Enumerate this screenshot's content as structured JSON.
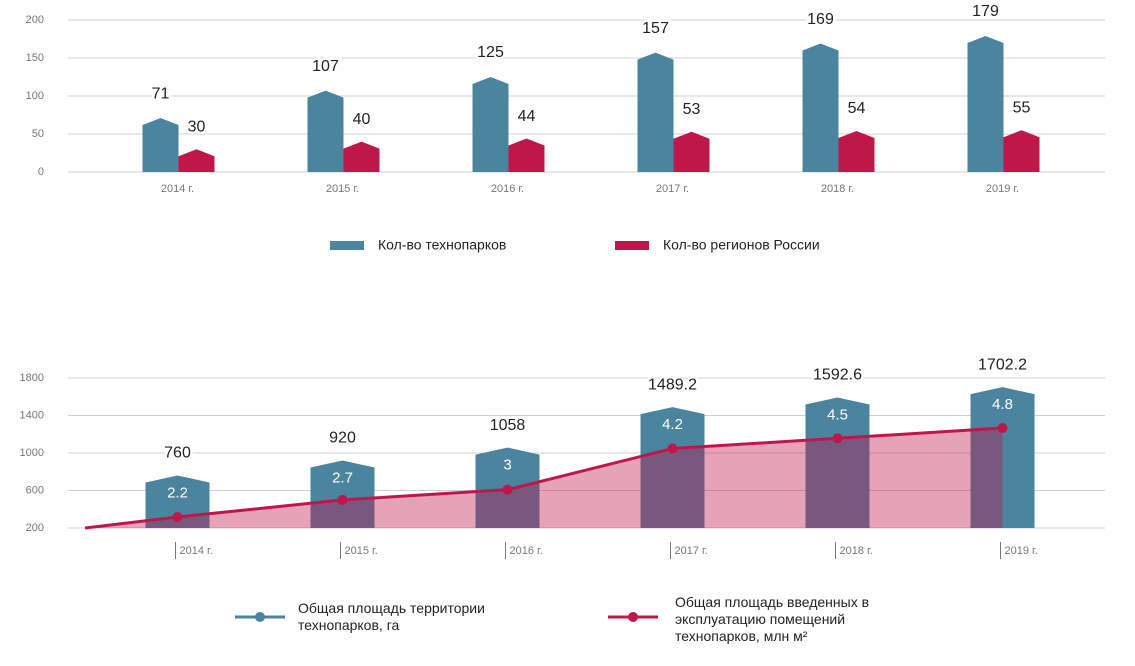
{
  "chart_data": [
    {
      "type": "bar",
      "categories": [
        "2014 г.",
        "2015 г.",
        "2016 г.",
        "2017 г.",
        "2018 г.",
        "2019 г."
      ],
      "series": [
        {
          "name": "Кол-во технопарков",
          "color": "#4a849e",
          "values": [
            71,
            107,
            125,
            157,
            169,
            179
          ]
        },
        {
          "name": "Кол-во регионов России",
          "color": "#c0174a",
          "values": [
            30,
            40,
            44,
            53,
            54,
            55
          ]
        }
      ],
      "ylim": [
        0,
        200
      ],
      "yticks": [
        0,
        50,
        100,
        150,
        200
      ],
      "grid": true,
      "legend": "bottom"
    },
    {
      "type": "bar_line",
      "categories": [
        "2014 г.",
        "2015 г.",
        "2016 г.",
        "2017 г.",
        "2018 г.",
        "2019 г."
      ],
      "series": [
        {
          "name": "Общая площадь территории технопарков, га",
          "color": "#4a849e",
          "values": [
            760,
            920,
            1058,
            1489.2,
            1592.6,
            1702.2
          ]
        },
        {
          "name": "Общая площадь введенных в эксплуатацию помещений технопарков, млн м²",
          "color": "#c0174a",
          "values": [
            2.2,
            2.7,
            3,
            4.2,
            4.5,
            4.8
          ],
          "axis": "y2"
        }
      ],
      "ylim": [
        200,
        1800
      ],
      "yticks": [
        200,
        600,
        1000,
        1400,
        1800
      ],
      "y2lim": [
        1.88,
        6.26
      ],
      "grid": true,
      "legend": "bottom"
    }
  ]
}
